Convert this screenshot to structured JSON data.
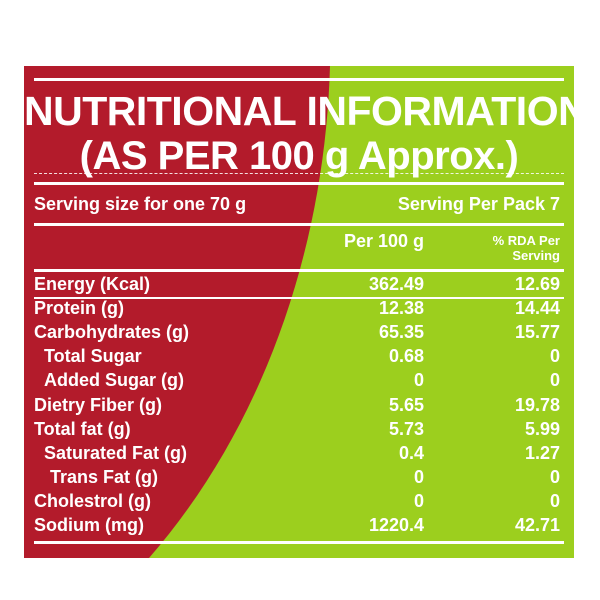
{
  "colors": {
    "red": "#b31b2b",
    "green": "#9ccf1e",
    "text": "#ffffff"
  },
  "title": {
    "line1": "NUTRITIONAL INFORMATION",
    "line2": "(AS PER 100 g Approx.)"
  },
  "serving": {
    "size": "Serving size for one 70 g",
    "per_pack": "Serving Per Pack 7"
  },
  "columns": {
    "per100": "Per 100 g",
    "rda_line1": "% RDA Per",
    "rda_line2": "Serving"
  },
  "rows": [
    {
      "label": "Energy (Kcal)",
      "per100": "362.49",
      "rda": "12.69"
    },
    {
      "label": "Protein (g)",
      "per100": "12.38",
      "rda": "14.44"
    },
    {
      "label": "Carbohydrates (g)",
      "per100": "65.35",
      "rda": "15.77"
    },
    {
      "label": "Total Sugar",
      "per100": "0.68",
      "rda": "0"
    },
    {
      "label": "Added Sugar (g)",
      "per100": "0",
      "rda": "0"
    },
    {
      "label": "Dietry Fiber (g)",
      "per100": "5.65",
      "rda": "19.78"
    },
    {
      "label": "Total fat (g)",
      "per100": "5.73",
      "rda": "5.99"
    },
    {
      "label": "Saturated Fat (g)",
      "per100": "0.4",
      "rda": "1.27"
    },
    {
      "label": "Trans Fat (g)",
      "per100": "0",
      "rda": "0"
    },
    {
      "label": "Cholestrol (g)",
      "per100": "0",
      "rda": "0"
    },
    {
      "label": "Sodium (mg)",
      "per100": "1220.4",
      "rda": "42.71"
    }
  ]
}
